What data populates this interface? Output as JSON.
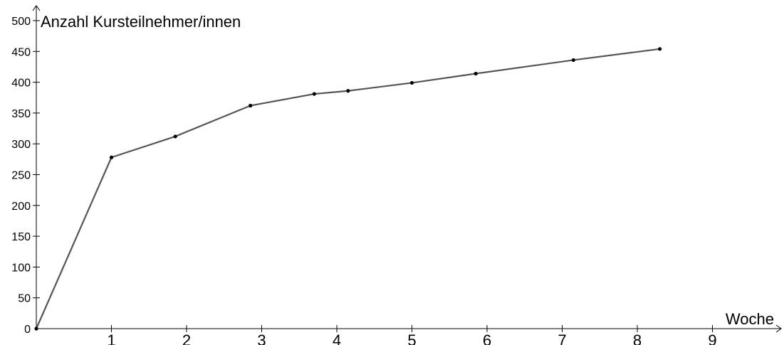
{
  "chart_data": {
    "type": "line",
    "title": "",
    "xlabel": "Woche",
    "ylabel": "Anzahl Kursteilnehmer/innen",
    "xlim": [
      0,
      9.8
    ],
    "ylim": [
      0,
      500
    ],
    "x_ticks": [
      1,
      2,
      3,
      4,
      5,
      6,
      7,
      8,
      9
    ],
    "y_ticks": [
      0,
      50,
      100,
      150,
      200,
      250,
      300,
      350,
      400,
      450,
      500
    ],
    "grid": false,
    "series": [
      {
        "x": [
          0,
          1,
          1.85,
          2.85,
          3.7,
          4.15,
          5,
          5.85,
          7.15,
          8.3
        ],
        "y": [
          0,
          278,
          312,
          362,
          381,
          386,
          399,
          414,
          436,
          454
        ]
      }
    ],
    "colors": {
      "line": "#555555",
      "point": "#000000",
      "axis": "#000000"
    }
  }
}
